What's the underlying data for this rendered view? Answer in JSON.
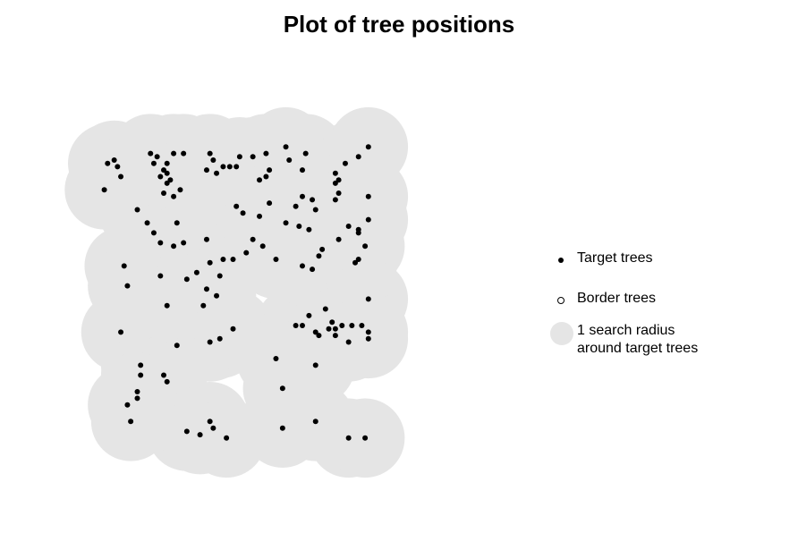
{
  "chart_data": {
    "type": "scatter",
    "title": "Plot of tree positions",
    "xlabel": "",
    "ylabel": "",
    "xlim": [
      0,
      100
    ],
    "ylim": [
      0,
      100
    ],
    "axes_visible": false,
    "grid": false,
    "legend_position": "right",
    "search_radius": 12,
    "colors": {
      "target": "#000000",
      "border": "#ffffff",
      "radius": "#e5e5e5"
    },
    "legend": {
      "target": "Target trees",
      "border": "Border trees",
      "radius": "1 search radius\naround target trees"
    },
    "series": [
      {
        "name": "Target trees",
        "points": [
          [
            12,
            89
          ],
          [
            14,
            90
          ],
          [
            15,
            88
          ],
          [
            16,
            85
          ],
          [
            11,
            81
          ],
          [
            25,
            92
          ],
          [
            27,
            91
          ],
          [
            26,
            89
          ],
          [
            30,
            89
          ],
          [
            29,
            87
          ],
          [
            30,
            86
          ],
          [
            31,
            84
          ],
          [
            32,
            92
          ],
          [
            28,
            85
          ],
          [
            35,
            92
          ],
          [
            30,
            83
          ],
          [
            29,
            80
          ],
          [
            32,
            79
          ],
          [
            34,
            81
          ],
          [
            43,
            92
          ],
          [
            44,
            90
          ],
          [
            42,
            87
          ],
          [
            45,
            86
          ],
          [
            47,
            88
          ],
          [
            49,
            88
          ],
          [
            51,
            88
          ],
          [
            52,
            91
          ],
          [
            56,
            91
          ],
          [
            58,
            84
          ],
          [
            60,
            85
          ],
          [
            61,
            87
          ],
          [
            60,
            92
          ],
          [
            66,
            94
          ],
          [
            67,
            90
          ],
          [
            71,
            87
          ],
          [
            72,
            92
          ],
          [
            71,
            79
          ],
          [
            74,
            78
          ],
          [
            81,
            86
          ],
          [
            82,
            84
          ],
          [
            81,
            83
          ],
          [
            81,
            78
          ],
          [
            82,
            80
          ],
          [
            84,
            89
          ],
          [
            88,
            91
          ],
          [
            91,
            94
          ],
          [
            91,
            79
          ],
          [
            21,
            75
          ],
          [
            24,
            71
          ],
          [
            26,
            68
          ],
          [
            33,
            71
          ],
          [
            51,
            76
          ],
          [
            53,
            74
          ],
          [
            58,
            73
          ],
          [
            61,
            77
          ],
          [
            66,
            71
          ],
          [
            69,
            76
          ],
          [
            70,
            70
          ],
          [
            73,
            69
          ],
          [
            75,
            75
          ],
          [
            77,
            63
          ],
          [
            76,
            61
          ],
          [
            74,
            57
          ],
          [
            71,
            58
          ],
          [
            82,
            66
          ],
          [
            85,
            70
          ],
          [
            88,
            68
          ],
          [
            88,
            69
          ],
          [
            90,
            64
          ],
          [
            91,
            72
          ],
          [
            87,
            59
          ],
          [
            88,
            60
          ],
          [
            91,
            48
          ],
          [
            17,
            58
          ],
          [
            18,
            52
          ],
          [
            28,
            65
          ],
          [
            32,
            64
          ],
          [
            35,
            65
          ],
          [
            42,
            66
          ],
          [
            43,
            59
          ],
          [
            47,
            60
          ],
          [
            46,
            55
          ],
          [
            50,
            60
          ],
          [
            54,
            62
          ],
          [
            56,
            66
          ],
          [
            59,
            64
          ],
          [
            63,
            60
          ],
          [
            28,
            55
          ],
          [
            36,
            54
          ],
          [
            39,
            56
          ],
          [
            42,
            51
          ],
          [
            45,
            49
          ],
          [
            41,
            46
          ],
          [
            30,
            46
          ],
          [
            16,
            38
          ],
          [
            33,
            34
          ],
          [
            43,
            35
          ],
          [
            46,
            36
          ],
          [
            50,
            39
          ],
          [
            69,
            40
          ],
          [
            71,
            40
          ],
          [
            73,
            43
          ],
          [
            76,
            37
          ],
          [
            78,
            45
          ],
          [
            75,
            38
          ],
          [
            79,
            39
          ],
          [
            81,
            39
          ],
          [
            80,
            41
          ],
          [
            81,
            37
          ],
          [
            83,
            40
          ],
          [
            85,
            35
          ],
          [
            86,
            40
          ],
          [
            89,
            40
          ],
          [
            91,
            38
          ],
          [
            91,
            36
          ],
          [
            75,
            28
          ],
          [
            63,
            30
          ],
          [
            65,
            21
          ],
          [
            22,
            28
          ],
          [
            22,
            25
          ],
          [
            29,
            25
          ],
          [
            30,
            23
          ],
          [
            21,
            20
          ],
          [
            21,
            18
          ],
          [
            18,
            16
          ],
          [
            19,
            11
          ],
          [
            36,
            8
          ],
          [
            40,
            7
          ],
          [
            43,
            11
          ],
          [
            44,
            9
          ],
          [
            48,
            6
          ],
          [
            65,
            9
          ],
          [
            75,
            11
          ],
          [
            85,
            6
          ],
          [
            90,
            6
          ]
        ]
      }
    ]
  }
}
